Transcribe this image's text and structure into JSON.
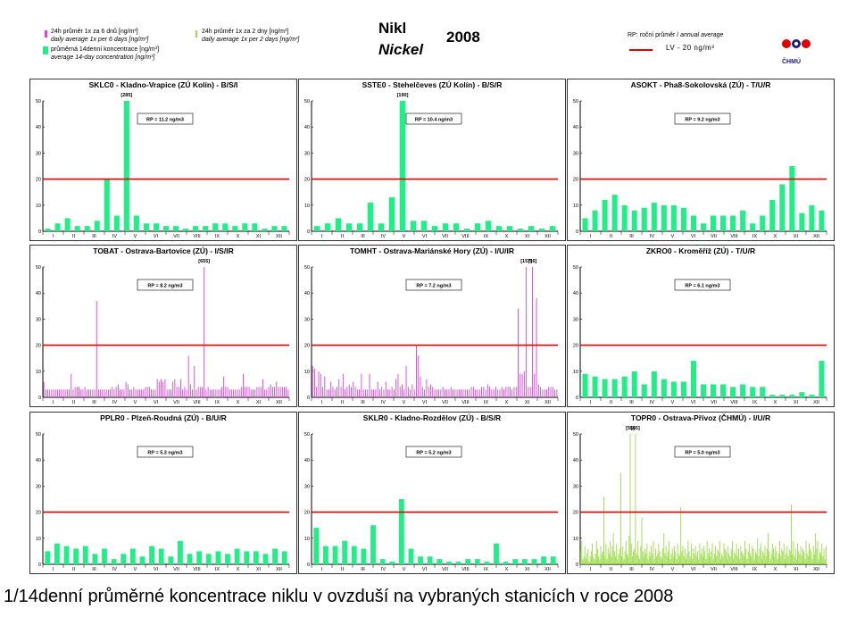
{
  "header": {
    "legend": [
      {
        "cz": "24h průměr 1x za 6 dnů [ng/m³]",
        "en": "daily average 1x per 6 days [ng/m³]",
        "color": "#e040e0"
      },
      {
        "cz": "průměrná 14denní koncentrace [ng/m³]",
        "en": "average 14-day concentration [ng/m³]",
        "color": "#22ee88"
      },
      {
        "cz": "24h průměr 1x za 2 dny [ng/m³]",
        "en": "daily average 1x per 2 days [ng/m³]",
        "color": "#99dd44"
      }
    ],
    "title_cz": "Nikl",
    "title_en": "Nickel",
    "year": "2008",
    "rp_cz": "RP: roční průměr / ",
    "rp_en": "annual average",
    "lv_text": "LV  - 20 ng/m³",
    "logo_text": "ČHMÚ"
  },
  "caption": "1/14denní průměrné koncentrace niklu v ovzduší na vybraných stanicích v roce 2008",
  "chart_data": [
    {
      "type": "bar",
      "title": "SKLC0 - Kladno-Vrapice (ZÚ Kolín) - B/S/I",
      "rp": "RP = 11.2 ng/m3",
      "mode": "bars",
      "ylim": [
        0,
        50
      ],
      "limit": 20,
      "values": [
        1,
        3,
        5,
        2,
        2,
        4,
        20,
        6,
        50,
        6,
        3,
        3,
        2,
        2,
        1,
        2,
        2,
        3,
        3,
        2,
        3,
        3,
        1,
        2,
        2
      ],
      "overflow": [
        {
          "label": "[285]",
          "index": 8
        }
      ]
    },
    {
      "type": "bar",
      "title": "SSTE0 - Stehelčeves (ZÚ Kolín) - B/S/R",
      "rp": "RP = 10.4 ng/m3",
      "mode": "bars",
      "ylim": [
        0,
        50
      ],
      "limit": 20,
      "values": [
        2,
        3,
        5,
        3,
        3,
        11,
        3,
        13,
        50,
        4,
        4,
        2,
        3,
        3,
        1,
        3,
        4,
        2,
        2,
        1,
        2,
        1,
        2
      ],
      "overflow": [
        {
          "label": "[190]",
          "index": 8
        }
      ]
    },
    {
      "type": "bar",
      "title": "ASOKT - Pha8-Sokolovská (ZÚ) - T/U/R",
      "rp": "RP = 9.2 ng/m3",
      "mode": "bars",
      "ylim": [
        0,
        50
      ],
      "limit": 20,
      "values": [
        5,
        8,
        12,
        14,
        10,
        8,
        9,
        11,
        10,
        10,
        9,
        6,
        3,
        6,
        6,
        6,
        8,
        3,
        6,
        12,
        18,
        25,
        7,
        10,
        8
      ],
      "overflow": []
    },
    {
      "type": "bar",
      "title": "TOBAT - Ostrava-Bartovice (ZÚ) - I/S/IR",
      "rp": "RP = 8.2 ng/m3",
      "mode": "spikes",
      "color": "#e040e0",
      "ylim": [
        0,
        50
      ],
      "limit": 20,
      "values": [
        6,
        3,
        3,
        3,
        3,
        3,
        3,
        3,
        3,
        3,
        3,
        3,
        3,
        3,
        9,
        3,
        4,
        4,
        4,
        3,
        3,
        4,
        3,
        3,
        3,
        3,
        3,
        37,
        3,
        3,
        3,
        3,
        3,
        3,
        3,
        4,
        3,
        4,
        5,
        3,
        3,
        3,
        6,
        5,
        3,
        3,
        4,
        3,
        3,
        3,
        3,
        3,
        4,
        4,
        4,
        3,
        3,
        3,
        7,
        6,
        7,
        6,
        7,
        3,
        3,
        3,
        6,
        7,
        4,
        4,
        7,
        3,
        4,
        3,
        16,
        5,
        3,
        12,
        3,
        4,
        4,
        4,
        50,
        3,
        4,
        3,
        3,
        3,
        3,
        3,
        3,
        4,
        8,
        4,
        4,
        3,
        3,
        3,
        3,
        3,
        3,
        4,
        9,
        4,
        4,
        4,
        3,
        3,
        3,
        4,
        4,
        4,
        7,
        3,
        3,
        4,
        5,
        4,
        4,
        6,
        4,
        4,
        4,
        4,
        4,
        3
      ],
      "overflow": [
        {
          "label": "[655]",
          "index": 82
        }
      ]
    },
    {
      "type": "bar",
      "title": "TOMHT - Ostrava-Mariánské Hory (ZÚ) - I/U/IR",
      "rp": "RP = 7.2 ng/m3",
      "mode": "spikes",
      "color": "#e040e0",
      "ylim": [
        0,
        50
      ],
      "limit": 20,
      "values": [
        12,
        11,
        4,
        10,
        9,
        4,
        8,
        3,
        3,
        6,
        4,
        3,
        4,
        7,
        4,
        9,
        3,
        4,
        5,
        4,
        6,
        4,
        3,
        3,
        9,
        3,
        3,
        3,
        9,
        3,
        3,
        3,
        6,
        3,
        4,
        3,
        6,
        3,
        3,
        4,
        3,
        7,
        9,
        4,
        5,
        3,
        12,
        4,
        3,
        5,
        3,
        20,
        16,
        8,
        4,
        3,
        7,
        4,
        5,
        4,
        3,
        3,
        3,
        3,
        4,
        3,
        3,
        3,
        4,
        3,
        3,
        3,
        3,
        3,
        3,
        3,
        3,
        3,
        4,
        4,
        3,
        3,
        3,
        4,
        4,
        3,
        5,
        4,
        3,
        3,
        4,
        3,
        3,
        4,
        3,
        4,
        4,
        4,
        3,
        4,
        4,
        34,
        9,
        9,
        10,
        50,
        4,
        4,
        50,
        9,
        38,
        5,
        4,
        3,
        3,
        3,
        4,
        4,
        4,
        3,
        3
      ],
      "overflow": [
        {
          "label": "[157]",
          "index": 105
        },
        {
          "label": "[56]",
          "index": 108
        }
      ]
    },
    {
      "type": "bar",
      "title": "ZKRO0 - Kroměříž (ZÚ) - T/U/R",
      "rp": "RP = 6.1 ng/m3",
      "mode": "bars",
      "ylim": [
        0,
        50
      ],
      "limit": 20,
      "values": [
        9,
        8,
        7,
        7,
        8,
        10,
        5,
        10,
        7,
        6,
        6,
        14,
        5,
        5,
        5,
        4,
        5,
        4,
        4,
        1,
        1,
        1,
        2,
        1,
        14
      ],
      "overflow": []
    },
    {
      "type": "bar",
      "title": "PPLR0 - Plzeň-Roudná (ZÚ) - B/U/R",
      "rp": "RP = 5.3 ng/m3",
      "mode": "bars",
      "ylim": [
        0,
        50
      ],
      "limit": 20,
      "values": [
        5,
        8,
        7,
        6,
        7,
        4,
        6,
        2,
        4,
        6,
        3,
        7,
        6,
        3,
        9,
        4,
        5,
        4,
        5,
        4,
        6,
        5,
        5,
        4,
        6,
        5
      ],
      "overflow": []
    },
    {
      "type": "bar",
      "title": "SKLR0 - Kladno-Rozdělov (ZÚ) - B/S/R",
      "rp": "RP = 5.2 ng/m3",
      "mode": "bars",
      "ylim": [
        0,
        50
      ],
      "limit": 20,
      "values": [
        14,
        7,
        7,
        9,
        7,
        6,
        15,
        2,
        1,
        25,
        6,
        3,
        3,
        2,
        1,
        1,
        2,
        2,
        1,
        8,
        1,
        2,
        2,
        2,
        3,
        3
      ],
      "overflow": []
    },
    {
      "type": "bar",
      "title": "TOPR0 - Ostrava-Přívoz (ČHMÚ) - I/U/R",
      "rp": "RP = 5.0 ng/m3",
      "mode": "spikes",
      "color": "#99dd44",
      "ylim": [
        0,
        50
      ],
      "limit": 20,
      "values": [
        5,
        9,
        2,
        3,
        7,
        2,
        4,
        6,
        1,
        3,
        5,
        8,
        3,
        2,
        4,
        9,
        6,
        3,
        2,
        7,
        4,
        5,
        26,
        3,
        8,
        2,
        6,
        4,
        9,
        3,
        7,
        12,
        5,
        3,
        8,
        2,
        4,
        6,
        35,
        3,
        7,
        2,
        5,
        9,
        4,
        3,
        11,
        50,
        8,
        3,
        5,
        6,
        50,
        4,
        9,
        3,
        2,
        7,
        18,
        5,
        3,
        6,
        4,
        8,
        2,
        5,
        3,
        7,
        4,
        9,
        2,
        6,
        3,
        4,
        8,
        5,
        3,
        2,
        6,
        12,
        4,
        7,
        3,
        5,
        9,
        2,
        4,
        6,
        3,
        7,
        5,
        2,
        8,
        4,
        3,
        22,
        5,
        7,
        3,
        6,
        2,
        4,
        9,
        5,
        3,
        8,
        2,
        6,
        4,
        7,
        3,
        5,
        2,
        8,
        4,
        6,
        3,
        7,
        5,
        2,
        9,
        4,
        6,
        3,
        5,
        8,
        2,
        4,
        7,
        3,
        6,
        5,
        9,
        2,
        4,
        3,
        8,
        6,
        5,
        2,
        7,
        4,
        3,
        6,
        9,
        2,
        5,
        4,
        8,
        3,
        6,
        2,
        7,
        5,
        4,
        3,
        9,
        6,
        2,
        5,
        8,
        4,
        3,
        7,
        6,
        2,
        5,
        4,
        10,
        3,
        6,
        8,
        2,
        5,
        4,
        7,
        3,
        6,
        12,
        5,
        2,
        4,
        8,
        6,
        3,
        7,
        5,
        2,
        4,
        9,
        3,
        6,
        5,
        8,
        2,
        4,
        7,
        3,
        6,
        5,
        23,
        4,
        9,
        3,
        6,
        2,
        8,
        5,
        4,
        7,
        3,
        6,
        5,
        2,
        9,
        4,
        3,
        8,
        6,
        5,
        2,
        7,
        4,
        12,
        6,
        9,
        2,
        5,
        4,
        8,
        3,
        6,
        2,
        7
      ],
      "overflow": [
        {
          "label": "[55]",
          "index": 47
        },
        {
          "label": "[65]",
          "index": 52
        }
      ]
    }
  ],
  "axis": {
    "months": [
      "I",
      "II",
      "III",
      "IV",
      "V",
      "VI",
      "VII",
      "VIII",
      "IX",
      "X",
      "XI",
      "XII"
    ],
    "yticks": [
      0,
      10,
      20,
      30,
      40,
      50
    ]
  },
  "colors": {
    "bar": "#22ee88",
    "limit": "#e00000",
    "pink": "#e040e0",
    "lime": "#99dd44"
  }
}
